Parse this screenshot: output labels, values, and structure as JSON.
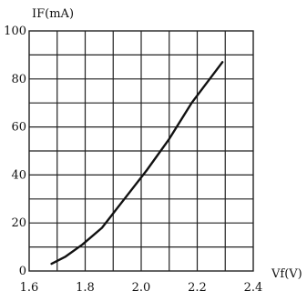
{
  "chart_data": {
    "type": "line",
    "xlabel": "Vf(V)",
    "ylabel": "IF(mA)",
    "xlim": [
      1.6,
      2.4
    ],
    "ylim": [
      0,
      100
    ],
    "x_ticks": [
      1.6,
      1.8,
      2.0,
      2.2,
      2.4
    ],
    "x_tick_labels": [
      "1.6",
      "1.8",
      "2.0",
      "2.2",
      "2.4"
    ],
    "y_ticks": [
      0,
      20,
      40,
      60,
      80,
      100
    ],
    "y_tick_labels": [
      "0",
      "20",
      "40",
      "60",
      "80",
      "100"
    ],
    "x_grid_step": 0.1,
    "y_grid_step": 10,
    "grid": true,
    "legend": "none",
    "series": [
      {
        "x": [
          1.68,
          1.73,
          1.79,
          1.86,
          1.94,
          2.02,
          2.1,
          2.18,
          2.29
        ],
        "y": [
          3,
          6,
          11,
          18,
          30,
          42,
          55,
          70,
          87
        ]
      }
    ]
  }
}
